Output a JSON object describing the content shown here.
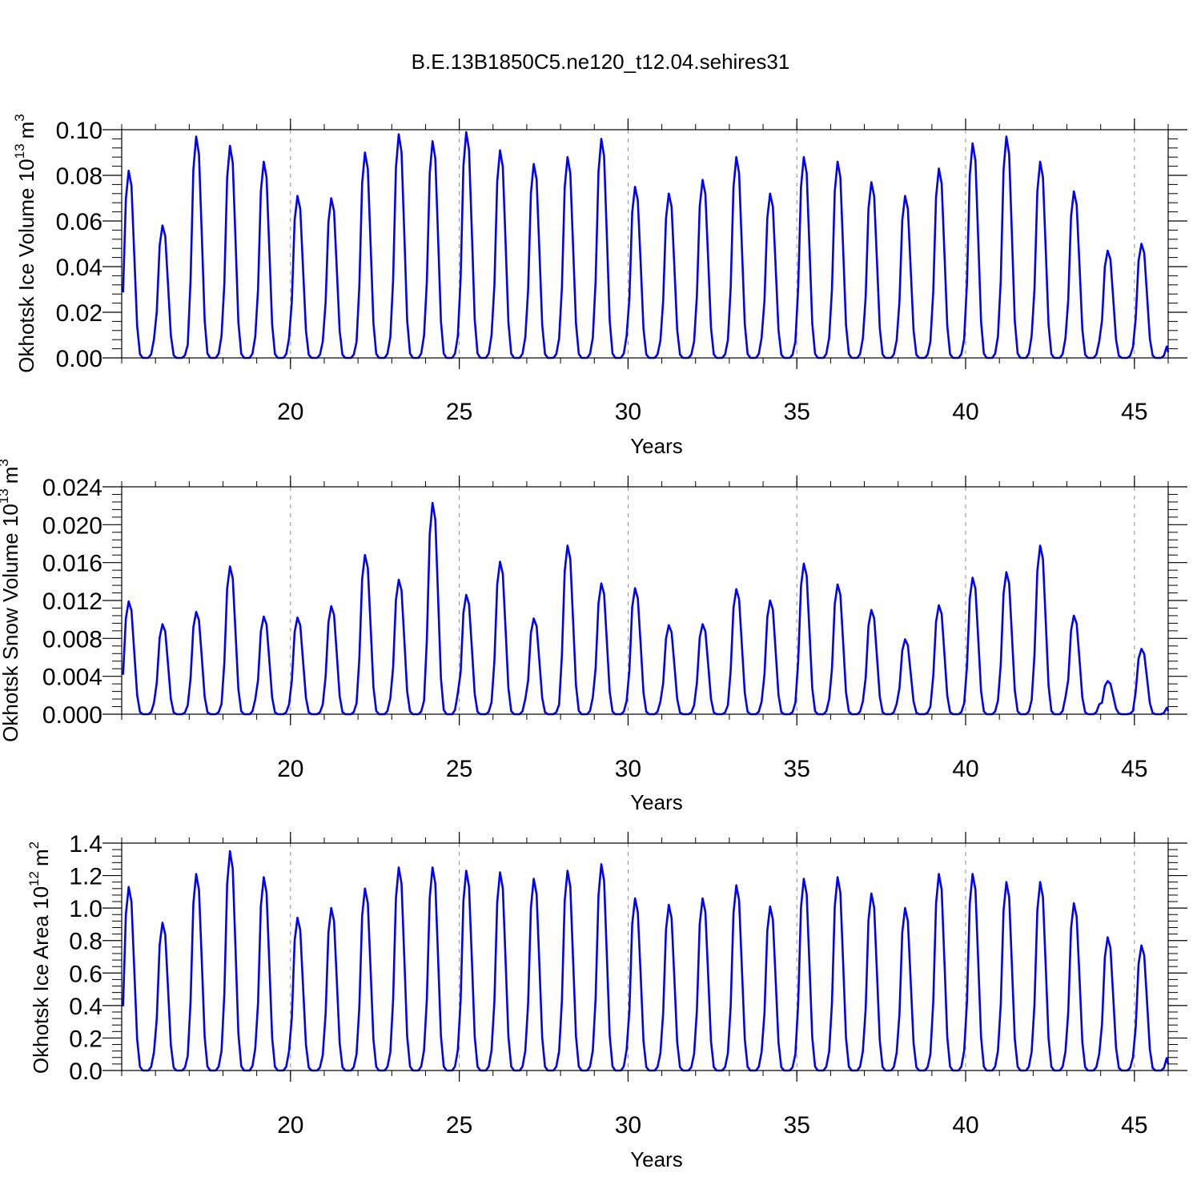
{
  "title": "B.E.13B1850C5.ne120_t12.04.sehires31",
  "colors": {
    "series": "#0000ff",
    "axes": "#000000",
    "grid": "#8c8c8c"
  },
  "chart_data": [
    {
      "type": "line",
      "name": "ice-volume",
      "ylabel_text": "Okhotsk Ice Volume 10",
      "ylabel_exp": "13",
      "ylabel_unit": "m",
      "ylabel_unit_exp": "3",
      "xlabel": "Years",
      "xlim": [
        15,
        46
      ],
      "ylim": [
        0,
        0.1
      ],
      "x_ticks": [
        "20",
        "25",
        "30",
        "35",
        "40",
        "45"
      ],
      "y_ticks": [
        "0.00",
        "0.02",
        "0.04",
        "0.06",
        "0.08",
        "0.10"
      ],
      "peaks": [
        0.082,
        0.058,
        0.097,
        0.093,
        0.086,
        0.071,
        0.07,
        0.09,
        0.098,
        0.095,
        0.099,
        0.091,
        0.085,
        0.088,
        0.096,
        0.075,
        0.072,
        0.078,
        0.088,
        0.072,
        0.088,
        0.086,
        0.077,
        0.071,
        0.083,
        0.094,
        0.097,
        0.086,
        0.073,
        0.047,
        0.05
      ]
    },
    {
      "type": "line",
      "name": "snow-volume",
      "ylabel_text": "Okhotsk Snow Volume 10",
      "ylabel_exp": "13",
      "ylabel_unit": "m",
      "ylabel_unit_exp": "3",
      "xlabel": "Years",
      "xlim": [
        15,
        46
      ],
      "ylim": [
        0,
        0.024
      ],
      "x_ticks": [
        "20",
        "25",
        "30",
        "35",
        "40",
        "45"
      ],
      "y_ticks": [
        "0.000",
        "0.004",
        "0.008",
        "0.012",
        "0.016",
        "0.020",
        "0.024"
      ],
      "peaks": [
        0.0119,
        0.0095,
        0.0108,
        0.0156,
        0.0103,
        0.0102,
        0.0114,
        0.0168,
        0.0142,
        0.0223,
        0.0126,
        0.0161,
        0.0101,
        0.0178,
        0.0138,
        0.0133,
        0.0094,
        0.0095,
        0.0132,
        0.012,
        0.0159,
        0.0137,
        0.011,
        0.0079,
        0.0115,
        0.0144,
        0.015,
        0.0178,
        0.0104,
        0.0035,
        0.0069
      ]
    },
    {
      "type": "line",
      "name": "ice-area",
      "ylabel_text": "Okhotsk Ice Area 10",
      "ylabel_exp": "12",
      "ylabel_unit": "m",
      "ylabel_unit_exp": "2",
      "xlabel": "Years",
      "xlim": [
        15,
        46
      ],
      "ylim": [
        0,
        1.4
      ],
      "x_ticks": [
        "20",
        "25",
        "30",
        "35",
        "40",
        "45"
      ],
      "y_ticks": [
        "0.0",
        "0.2",
        "0.4",
        "0.6",
        "0.8",
        "1.0",
        "1.2",
        "1.4"
      ],
      "peaks": [
        1.13,
        0.91,
        1.21,
        1.35,
        1.19,
        0.94,
        1.0,
        1.12,
        1.25,
        1.25,
        1.23,
        1.22,
        1.18,
        1.23,
        1.27,
        1.06,
        1.02,
        1.06,
        1.14,
        1.01,
        1.18,
        1.19,
        1.09,
        1.0,
        1.21,
        1.21,
        1.16,
        1.16,
        1.03,
        0.82,
        0.77
      ]
    }
  ]
}
